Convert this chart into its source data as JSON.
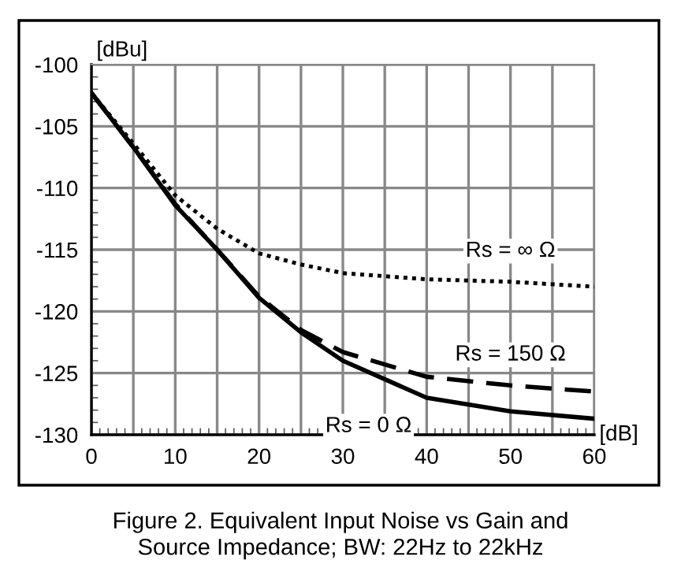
{
  "chart_data": {
    "type": "line",
    "x": [
      0,
      5,
      10,
      15,
      20,
      25,
      30,
      40,
      50,
      60
    ],
    "series": [
      {
        "name": "Rs = ∞ Ω",
        "color": "#000000",
        "line_style": "dotted",
        "values": [
          -102.3,
          -106.4,
          -110.6,
          -113.3,
          -115.3,
          -116.2,
          -116.9,
          -117.4,
          -117.6,
          -118.0
        ]
      },
      {
        "name": "Rs = 150 Ω",
        "color": "#000000",
        "line_style": "dashed",
        "values": [
          -102.3,
          -106.7,
          -111.3,
          -115.0,
          -118.8,
          -121.5,
          -123.3,
          -125.3,
          -126.0,
          -126.5
        ]
      },
      {
        "name": "Rs = 0 Ω",
        "color": "#000000",
        "line_style": "solid",
        "values": [
          -102.3,
          -106.7,
          -111.4,
          -115.0,
          -118.9,
          -121.7,
          -124.0,
          -127.0,
          -128.1,
          -128.7
        ]
      }
    ],
    "xlabel": "[dB]",
    "ylabel": "[dBu]",
    "xlim": [
      0,
      60
    ],
    "ylim": [
      -130,
      -100
    ],
    "xticks": [
      0,
      {
        "value": 5,
        "label": null
      },
      10,
      {
        "value": 15,
        "label": null
      },
      20,
      {
        "value": 25,
        "label": null
      },
      30,
      {
        "value": 35,
        "label": null
      },
      40,
      {
        "value": 45,
        "label": null
      },
      50,
      {
        "value": 55,
        "label": null
      },
      60
    ],
    "yticks": [
      -130,
      -125,
      -120,
      -115,
      -110,
      -105,
      -100
    ],
    "grid": true,
    "legend": false,
    "marker": "none",
    "annotations": [
      "Figure 2. Equivalent Input Noise vs Gain and\nSource Impedance; BW: 22Hz to 22kHz"
    ]
  }
}
